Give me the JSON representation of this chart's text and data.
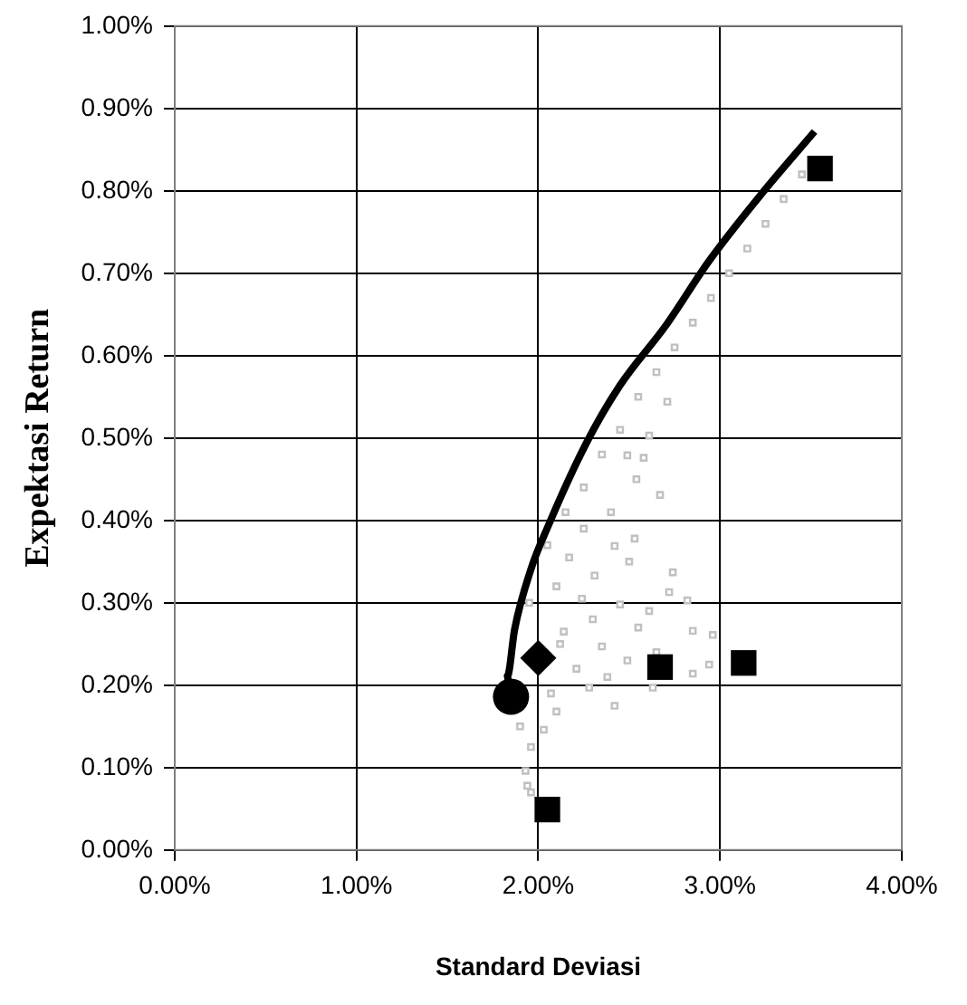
{
  "chart_data": {
    "type": "scatter",
    "xlabel": "Standard Deviasi",
    "ylabel": "Expektasi Return",
    "grid": true,
    "legend": false,
    "xlim": [
      0,
      4
    ],
    "xticks": [
      {
        "value": 0,
        "label": "0.00%"
      },
      {
        "value": 1,
        "label": "1.00%"
      },
      {
        "value": 2,
        "label": "2.00%"
      },
      {
        "value": 3,
        "label": "3.00%"
      },
      {
        "value": 4,
        "label": "4.00%"
      }
    ],
    "ylim": [
      0,
      1
    ],
    "yticks": [
      {
        "value": 0,
        "label": "0.00%"
      },
      {
        "value": 0.1,
        "label": "0.10%"
      },
      {
        "value": 0.2,
        "label": "0.20%"
      },
      {
        "value": 0.3,
        "label": "0.30%"
      },
      {
        "value": 0.4,
        "label": "0.40%"
      },
      {
        "value": 0.5,
        "label": "0.50%"
      },
      {
        "value": 0.6,
        "label": "0.60%"
      },
      {
        "value": 0.7,
        "label": "0.70%"
      },
      {
        "value": 0.8,
        "label": "0.80%"
      },
      {
        "value": 0.9,
        "label": "0.90%"
      },
      {
        "value": 1,
        "label": "1.00%"
      }
    ],
    "series": [
      {
        "type": "scatter",
        "marker": "square",
        "color": "#c0c0c0",
        "x": [
          3.45,
          3.35,
          3.25,
          3.15,
          3.05,
          2.95,
          2.85,
          2.75,
          2.65,
          2.55,
          2.45,
          2.35,
          2.25,
          2.15,
          2.05,
          2.71,
          2.61,
          2.58,
          2.67,
          2.54,
          2.49,
          2.53,
          2.74,
          2.72,
          2.82,
          2.85,
          2.96,
          2.94,
          2.85,
          2.63,
          2.42,
          2.28,
          2.1,
          2.03,
          1.96,
          1.93,
          1.94,
          1.96,
          2.24,
          2.45,
          2.35,
          2.55,
          2.17,
          2.31,
          2.42,
          2.14,
          2.21,
          2.07,
          2.49,
          2.61,
          2.25,
          2.1,
          2.4,
          1.95,
          2.12,
          1.9,
          2.3,
          2.5,
          2.65,
          2.38
        ],
        "values": [
          0.82,
          0.79,
          0.76,
          0.73,
          0.7,
          0.67,
          0.64,
          0.61,
          0.58,
          0.55,
          0.51,
          0.48,
          0.44,
          0.41,
          0.37,
          0.544,
          0.503,
          0.476,
          0.431,
          0.45,
          0.479,
          0.378,
          0.337,
          0.313,
          0.303,
          0.266,
          0.261,
          0.225,
          0.214,
          0.197,
          0.175,
          0.197,
          0.168,
          0.146,
          0.125,
          0.096,
          0.078,
          0.07,
          0.305,
          0.298,
          0.247,
          0.27,
          0.355,
          0.333,
          0.369,
          0.265,
          0.22,
          0.19,
          0.23,
          0.29,
          0.39,
          0.32,
          0.41,
          0.3,
          0.25,
          0.15,
          0.28,
          0.35,
          0.24,
          0.21
        ]
      },
      {
        "type": "line",
        "marker": "none",
        "color": "#000000",
        "x": [
          1.84,
          1.83,
          1.87,
          1.96,
          2.05,
          2.26,
          2.45,
          2.7,
          2.94,
          3.22,
          3.52
        ],
        "values": [
          0.19,
          0.211,
          0.268,
          0.341,
          0.391,
          0.492,
          0.564,
          0.636,
          0.715,
          0.794,
          0.872
        ]
      },
      {
        "type": "scatter",
        "marker": "circle",
        "color": "#000000",
        "x": [
          1.85
        ],
        "values": [
          0.186
        ]
      },
      {
        "type": "scatter",
        "marker": "diamond",
        "color": "#000000",
        "x": [
          2.0
        ],
        "values": [
          0.233
        ]
      },
      {
        "type": "scatter",
        "marker": "square",
        "color": "#000000",
        "x": [
          2.05,
          2.67,
          3.13,
          3.55
        ],
        "values": [
          0.049,
          0.222,
          0.227,
          0.827
        ]
      }
    ]
  }
}
